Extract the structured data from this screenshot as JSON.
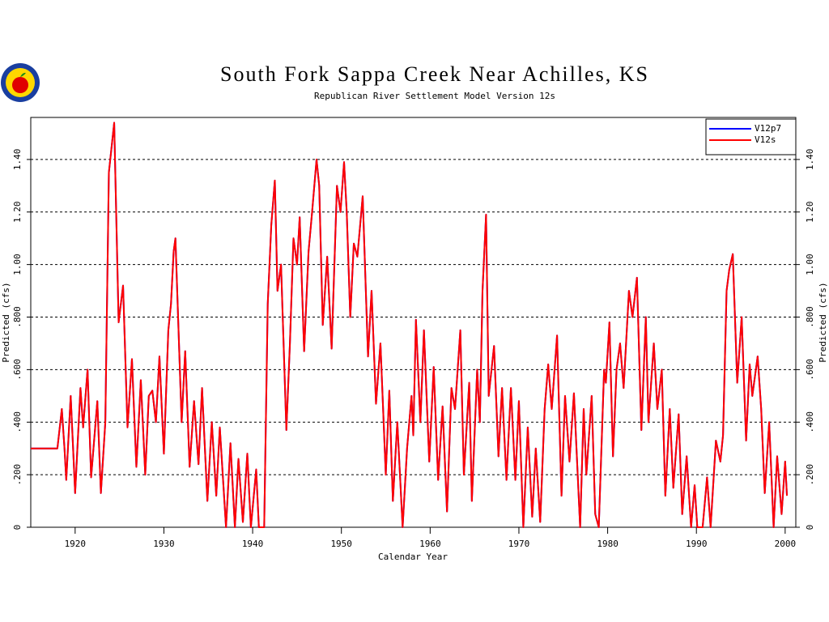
{
  "chart_data": {
    "type": "line",
    "title": "South Fork Sappa Creek Near Achilles, KS",
    "subtitle": "Republican River Settlement Model Version 12s",
    "x_label": "Calendar Year",
    "y_label": "Predicted (cfs)",
    "xlim": [
      1915,
      2001.2
    ],
    "xticks": [
      1920,
      1930,
      1940,
      1950,
      1960,
      1970,
      1980,
      1990,
      2000
    ],
    "ylim": [
      0,
      1.56
    ],
    "yticks": [
      0,
      {
        "value": 0.2,
        "label": ".200"
      },
      {
        "value": 0.4,
        "label": ".400"
      },
      {
        "value": 0.6,
        "label": ".600"
      },
      {
        "value": 0.8,
        "label": ".800"
      },
      {
        "value": 1.0,
        "label": "1.00"
      },
      {
        "value": 1.2,
        "label": "1.20"
      },
      {
        "value": 1.4,
        "label": "1.40"
      }
    ],
    "grid": true,
    "legend": "upper right",
    "x": [
      1915.0,
      1918.0,
      1918.5,
      1918.8,
      1919.0,
      1919.5,
      1920.0,
      1920.6,
      1920.9,
      1921.4,
      1921.8,
      1922.5,
      1922.9,
      1923.4,
      1923.8,
      1924.4,
      1924.9,
      1925.4,
      1925.9,
      1926.4,
      1926.9,
      1927.4,
      1927.9,
      1928.3,
      1928.7,
      1929.1,
      1929.5,
      1930.0,
      1930.5,
      1930.8,
      1931.1,
      1931.3,
      1932.0,
      1932.4,
      1932.9,
      1933.4,
      1933.9,
      1934.3,
      1934.9,
      1935.4,
      1935.9,
      1936.3,
      1937.0,
      1937.5,
      1938.0,
      1938.4,
      1938.9,
      1939.4,
      1939.8,
      1940.4,
      1940.7,
      1941.3,
      1941.7,
      1942.1,
      1942.5,
      1942.8,
      1943.2,
      1943.8,
      1944.2,
      1944.6,
      1945.0,
      1945.3,
      1945.8,
      1946.3,
      1946.7,
      1947.2,
      1947.5,
      1947.9,
      1948.4,
      1948.9,
      1949.5,
      1949.9,
      1950.3,
      1950.6,
      1951.0,
      1951.4,
      1951.8,
      1952.4,
      1953.0,
      1953.4,
      1953.9,
      1954.4,
      1955.0,
      1955.4,
      1955.8,
      1956.3,
      1956.9,
      1957.4,
      1957.9,
      1958.1,
      1958.4,
      1958.9,
      1959.3,
      1959.9,
      1960.4,
      1960.9,
      1961.4,
      1961.9,
      1962.4,
      1962.8,
      1963.4,
      1963.8,
      1964.4,
      1964.7,
      1965.3,
      1965.6,
      1965.9,
      1966.3,
      1966.6,
      1967.2,
      1967.7,
      1968.1,
      1968.6,
      1969.1,
      1969.6,
      1970.0,
      1970.5,
      1971.0,
      1971.5,
      1971.9,
      1972.4,
      1972.9,
      1973.3,
      1973.7,
      1974.3,
      1974.8,
      1975.2,
      1975.7,
      1976.2,
      1976.9,
      1977.3,
      1977.6,
      1978.2,
      1978.6,
      1979.0,
      1979.6,
      1979.8,
      1980.2,
      1980.6,
      1981.0,
      1981.4,
      1981.8,
      1982.4,
      1982.8,
      1983.3,
      1983.8,
      1984.3,
      1984.6,
      1985.2,
      1985.6,
      1986.1,
      1986.5,
      1987.0,
      1987.4,
      1988.0,
      1988.4,
      1988.9,
      1989.4,
      1989.8,
      1990.1,
      1990.7,
      1991.2,
      1991.6,
      1992.2,
      1992.7,
      1993.0,
      1993.4,
      1993.7,
      1994.1,
      1994.6,
      1995.1,
      1995.6,
      1996.0,
      1996.3,
      1996.9,
      1997.3,
      1997.7,
      1998.2,
      1998.7,
      1999.1,
      1999.6,
      2000.0,
      2000.2
    ],
    "series": [
      {
        "name": "V12p7",
        "color": "#0000ff",
        "values": [
          0.3,
          0.3,
          0.45,
          0.3,
          0.18,
          0.5,
          0.13,
          0.53,
          0.38,
          0.6,
          0.19,
          0.48,
          0.13,
          0.4,
          1.35,
          1.54,
          0.78,
          0.92,
          0.38,
          0.64,
          0.23,
          0.56,
          0.2,
          0.5,
          0.52,
          0.4,
          0.65,
          0.28,
          0.75,
          0.85,
          1.05,
          1.1,
          0.4,
          0.67,
          0.23,
          0.48,
          0.24,
          0.53,
          0.1,
          0.4,
          0.12,
          0.38,
          0,
          0.32,
          0,
          0.26,
          0.02,
          0.28,
          0,
          0.22,
          0,
          0,
          0.85,
          1.15,
          1.32,
          0.9,
          1.0,
          0.37,
          0.7,
          1.1,
          1.0,
          1.18,
          0.67,
          1.05,
          1.2,
          1.4,
          1.3,
          0.77,
          1.03,
          0.68,
          1.3,
          1.2,
          1.39,
          1.2,
          0.8,
          1.08,
          1.03,
          1.26,
          0.65,
          0.9,
          0.47,
          0.7,
          0.2,
          0.52,
          0.1,
          0.4,
          0,
          0.3,
          0.5,
          0.35,
          0.79,
          0.4,
          0.75,
          0.25,
          0.61,
          0.18,
          0.46,
          0.06,
          0.53,
          0.45,
          0.75,
          0.2,
          0.55,
          0.1,
          0.6,
          0.4,
          0.9,
          1.19,
          0.5,
          0.69,
          0.27,
          0.53,
          0.18,
          0.53,
          0.18,
          0.48,
          0,
          0.38,
          0.04,
          0.3,
          0.02,
          0.45,
          0.62,
          0.45,
          0.73,
          0.12,
          0.5,
          0.25,
          0.51,
          0,
          0.45,
          0.2,
          0.5,
          0.05,
          0,
          0.6,
          0.55,
          0.78,
          0.27,
          0.6,
          0.7,
          0.53,
          0.9,
          0.8,
          0.95,
          0.37,
          0.8,
          0.4,
          0.7,
          0.45,
          0.6,
          0.12,
          0.45,
          0.15,
          0.43,
          0.05,
          0.27,
          0,
          0.16,
          0,
          0,
          0.19,
          0,
          0.33,
          0.25,
          0.35,
          0.9,
          0.98,
          1.04,
          0.55,
          0.8,
          0.33,
          0.62,
          0.5,
          0.65,
          0.45,
          0.13,
          0.4,
          0,
          0.27,
          0.05,
          0.25,
          0.12
        ]
      },
      {
        "name": "V12s",
        "color": "#ff0000",
        "values": [
          0.3,
          0.3,
          0.45,
          0.3,
          0.18,
          0.5,
          0.13,
          0.53,
          0.38,
          0.6,
          0.19,
          0.48,
          0.13,
          0.4,
          1.35,
          1.54,
          0.78,
          0.92,
          0.38,
          0.64,
          0.23,
          0.56,
          0.2,
          0.5,
          0.52,
          0.4,
          0.65,
          0.28,
          0.75,
          0.85,
          1.05,
          1.1,
          0.4,
          0.67,
          0.23,
          0.48,
          0.24,
          0.53,
          0.1,
          0.4,
          0.12,
          0.38,
          0,
          0.32,
          0,
          0.26,
          0.02,
          0.28,
          0,
          0.22,
          0,
          0,
          0.85,
          1.15,
          1.32,
          0.9,
          1.0,
          0.37,
          0.7,
          1.1,
          1.0,
          1.18,
          0.67,
          1.05,
          1.2,
          1.4,
          1.3,
          0.77,
          1.03,
          0.68,
          1.3,
          1.2,
          1.39,
          1.2,
          0.8,
          1.08,
          1.03,
          1.26,
          0.65,
          0.9,
          0.47,
          0.7,
          0.2,
          0.52,
          0.1,
          0.4,
          0,
          0.3,
          0.5,
          0.35,
          0.79,
          0.4,
          0.75,
          0.25,
          0.61,
          0.18,
          0.46,
          0.06,
          0.53,
          0.45,
          0.75,
          0.2,
          0.55,
          0.1,
          0.6,
          0.4,
          0.9,
          1.19,
          0.5,
          0.69,
          0.27,
          0.53,
          0.18,
          0.53,
          0.18,
          0.48,
          0,
          0.38,
          0.04,
          0.3,
          0.02,
          0.45,
          0.62,
          0.45,
          0.73,
          0.12,
          0.5,
          0.25,
          0.51,
          0,
          0.45,
          0.2,
          0.5,
          0.05,
          0,
          0.6,
          0.55,
          0.78,
          0.27,
          0.6,
          0.7,
          0.53,
          0.9,
          0.8,
          0.95,
          0.37,
          0.8,
          0.4,
          0.7,
          0.45,
          0.6,
          0.12,
          0.45,
          0.15,
          0.43,
          0.05,
          0.27,
          0,
          0.16,
          0,
          0,
          0.19,
          0,
          0.33,
          0.25,
          0.35,
          0.9,
          0.98,
          1.04,
          0.55,
          0.8,
          0.33,
          0.62,
          0.5,
          0.65,
          0.45,
          0.13,
          0.4,
          0,
          0.27,
          0.05,
          0.25,
          0.12
        ]
      }
    ]
  }
}
